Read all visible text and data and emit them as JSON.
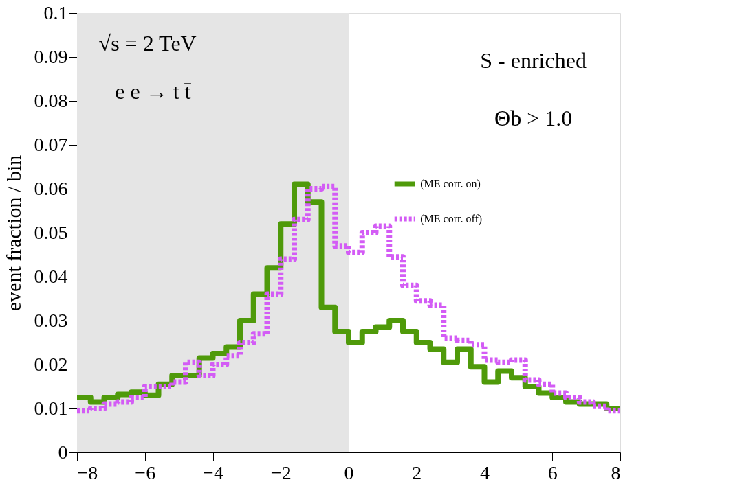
{
  "chart_data": {
    "type": "histogram",
    "ylabel": "event fraction / bin",
    "bins": [
      -8,
      -7.6,
      -7.2,
      -6.8,
      -6.4,
      -6,
      -5.6,
      -5.2,
      -4.8,
      -4.4,
      -4,
      -3.6,
      -3.2,
      -2.8,
      -2.4,
      -2,
      -1.6,
      -1.2,
      -0.8,
      -0.4,
      0,
      0.4,
      0.8,
      1.2,
      1.6,
      2,
      2.4,
      2.8,
      3.2,
      3.6,
      4,
      4.4,
      4.8,
      5.2,
      5.6,
      6,
      6.4,
      6.8,
      7.2,
      7.6,
      8
    ],
    "series": [
      {
        "name": "(ME corr. on)",
        "color": "#4f9a0a",
        "line_style": "solid",
        "values": [
          0.0125,
          0.0115,
          0.0125,
          0.0132,
          0.0137,
          0.013,
          0.0155,
          0.0175,
          0.0175,
          0.0215,
          0.0225,
          0.024,
          0.03,
          0.036,
          0.042,
          0.052,
          0.061,
          0.057,
          0.033,
          0.0275,
          0.025,
          0.0275,
          0.0285,
          0.03,
          0.0275,
          0.025,
          0.0235,
          0.0205,
          0.0235,
          0.0195,
          0.016,
          0.0185,
          0.017,
          0.015,
          0.0135,
          0.0125,
          0.0115,
          0.011,
          0.011,
          0.01
        ]
      },
      {
        "name": "(ME corr. off)",
        "color": "#d35cf5",
        "line_style": "dotted",
        "values": [
          0.0095,
          0.01,
          0.011,
          0.0115,
          0.0125,
          0.015,
          0.015,
          0.016,
          0.0205,
          0.0175,
          0.02,
          0.022,
          0.025,
          0.027,
          0.036,
          0.044,
          0.053,
          0.06,
          0.0605,
          0.047,
          0.0455,
          0.05,
          0.0515,
          0.0445,
          0.038,
          0.0345,
          0.0335,
          0.026,
          0.0255,
          0.0245,
          0.021,
          0.0205,
          0.021,
          0.0165,
          0.0155,
          0.0135,
          0.0125,
          0.0115,
          0.0105,
          0.0095
        ]
      }
    ],
    "xlim": [
      -8,
      8
    ],
    "xticks": [
      -8,
      -6,
      -4,
      -2,
      0,
      2,
      4,
      6,
      8
    ],
    "ylim": [
      0,
      0.1
    ],
    "yticks": [
      0,
      0.01,
      0.02,
      0.03,
      0.04,
      0.05,
      0.06,
      0.07,
      0.08,
      0.09,
      0.1
    ],
    "bands": [
      {
        "axis": "x",
        "from": -8,
        "to": 0,
        "color": "#e5e5e5"
      }
    ],
    "annotations": [
      "√s = 2 TeV",
      "e e → t t̄",
      "S - enriched",
      "Θb > 1.0"
    ],
    "legend": "right",
    "grid": false
  }
}
